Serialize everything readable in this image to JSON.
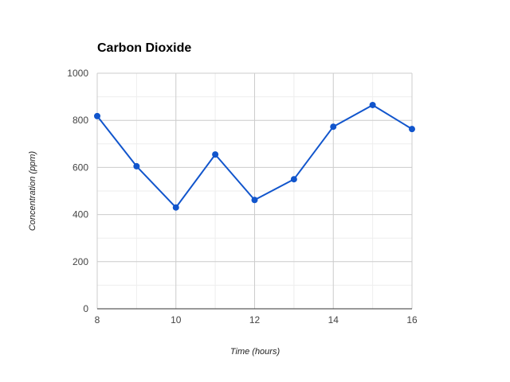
{
  "chart_data": {
    "type": "line",
    "title": "Carbon Dioxide",
    "xlabel": "Time (hours)",
    "ylabel": "Concentration (ppm)",
    "xlim": [
      8,
      16
    ],
    "ylim": [
      0,
      1000
    ],
    "x_ticks": [
      "8",
      "10",
      "12",
      "14",
      "16"
    ],
    "y_ticks": [
      "0",
      "200",
      "400",
      "600",
      "800",
      "1000"
    ],
    "grid": true,
    "legend": "none",
    "series": [
      {
        "color": "#1155cc",
        "x": [
          8,
          9,
          10,
          11,
          12,
          13,
          14,
          15,
          16
        ],
        "y": [
          818,
          605,
          430,
          655,
          462,
          550,
          773,
          865,
          763
        ]
      }
    ]
  }
}
